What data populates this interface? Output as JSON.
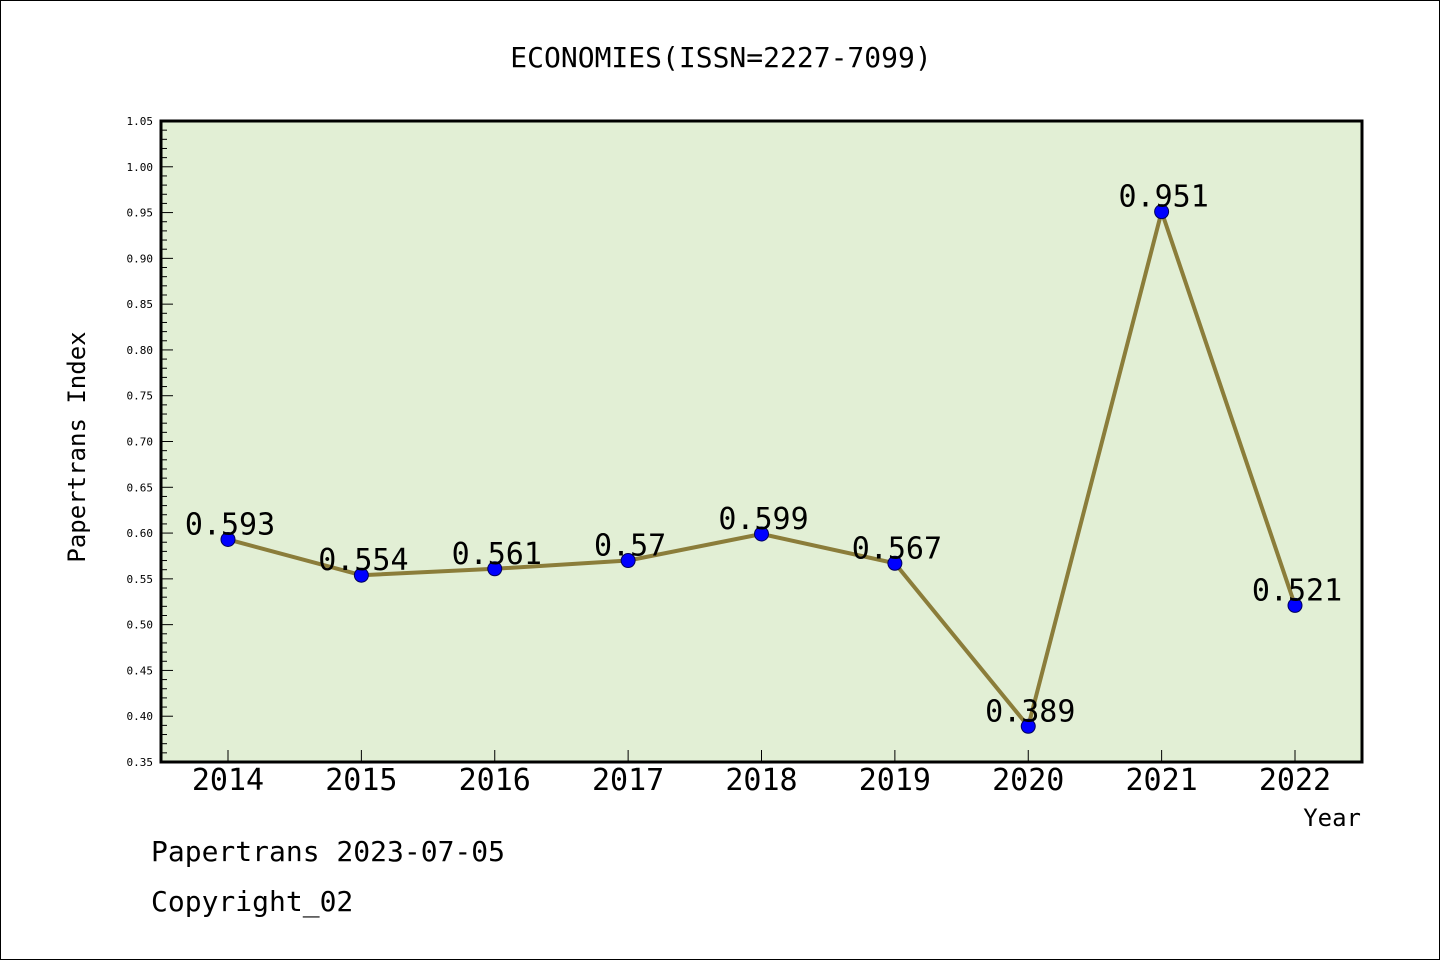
{
  "chart_data": {
    "type": "line",
    "title": "ECONOMIES(ISSN=2227-7099)",
    "xlabel": "Year",
    "ylabel": "Papertrans Index",
    "categories": [
      "2014",
      "2015",
      "2016",
      "2017",
      "2018",
      "2019",
      "2020",
      "2021",
      "2022"
    ],
    "series": [
      {
        "values": [
          0.593,
          0.554,
          0.561,
          0.57,
          0.599,
          0.567,
          0.389,
          0.951,
          0.521
        ]
      }
    ],
    "data_labels": [
      "0.593",
      "0.554",
      "0.561",
      "0.57",
      "0.599",
      "0.567",
      "0.389",
      "0.951",
      "0.521"
    ],
    "ylim": [
      0.35,
      1.05
    ],
    "yticks": [
      "0.35",
      "0.40",
      "0.45",
      "0.50",
      "0.55",
      "0.60",
      "0.65",
      "0.70",
      "0.75",
      "0.80",
      "0.85",
      "0.90",
      "0.95",
      "1.00",
      "1.05"
    ],
    "grid": false,
    "colors": {
      "plot_bg": "#e2efd5",
      "line": "#8b7d3a",
      "marker": "#0000ff"
    }
  },
  "footer": {
    "line1": "Papertrans 2023-07-05",
    "line2": "Copyright_02"
  }
}
